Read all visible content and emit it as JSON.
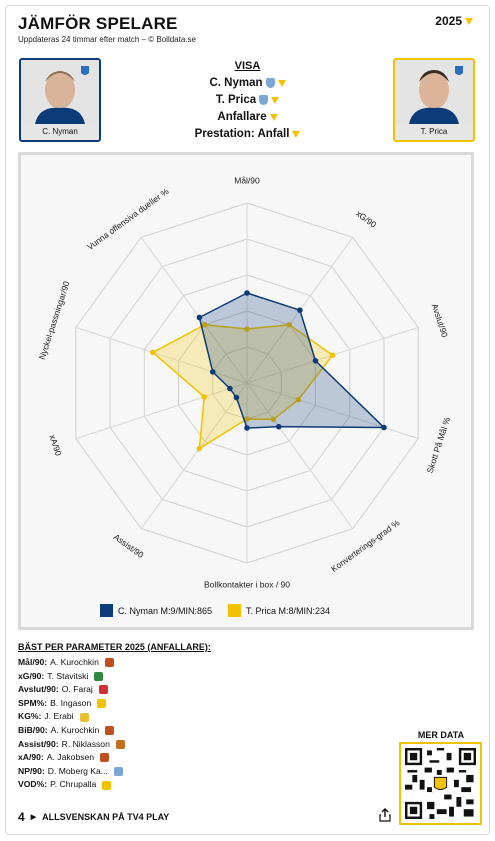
{
  "header": {
    "title": "JÄMFÖR SPELARE",
    "subtitle": "Uppdateras 24 timmar efter match – © Bolldata.se",
    "year": "2025"
  },
  "players": {
    "left": {
      "name": "C. Nyman",
      "color": "#0b3b78"
    },
    "right": {
      "name": "T. Prica",
      "color": "#f2c200"
    }
  },
  "visa": {
    "heading": "VISA",
    "player1": "C. Nyman",
    "player2": "T. Prica",
    "position": "Anfallare",
    "prestation": "Prestation: Anfall"
  },
  "chart_data": {
    "type": "radar",
    "axes": [
      "Mål/90",
      "xG/90",
      "Avslut/90",
      "Skott På Mål %",
      "Konverterings-grad %",
      "Bollkontakter i box / 90",
      "Assist/90",
      "xA/90",
      "Nyckel-passningar/90",
      "Vunna offensiva dueller %"
    ],
    "series": [
      {
        "name": "C. Nyman M:9/MIN:865",
        "values": [
          0.5,
          0.5,
          0.4,
          0.8,
          0.3,
          0.25,
          0.1,
          0.1,
          0.2,
          0.45
        ],
        "color": "#0b3b78"
      },
      {
        "name": "T. Prica M:8/MIN:234",
        "values": [
          0.3,
          0.4,
          0.5,
          0.3,
          0.25,
          0.2,
          0.45,
          0.25,
          0.55,
          0.4
        ],
        "color": "#f2c200"
      }
    ],
    "rlim": [
      0,
      1
    ],
    "grid": true
  },
  "legend": {
    "left": "C. Nyman M:9/MIN:865",
    "right": "T. Prica M:8/MIN:234"
  },
  "best": {
    "heading": "BÄST PER PARAMETER 2025 (ANFALLARE):",
    "rows": [
      {
        "k": "Mål/90",
        "v": "A. Kurochkin",
        "color": "#c05020"
      },
      {
        "k": "xG/90",
        "v": "T. Stavitski",
        "color": "#2e8b3e"
      },
      {
        "k": "Avslut/90",
        "v": "O. Faraj",
        "color": "#d23030"
      },
      {
        "k": "SPM%",
        "v": "B. Ingason",
        "color": "#f2c200"
      },
      {
        "k": "KG%",
        "v": "J. Erabi",
        "color": "#e8c030"
      },
      {
        "k": "BiB/90",
        "v": "A. Kurochkin",
        "color": "#c05020"
      },
      {
        "k": "Assist/90",
        "v": "R. Niklasson",
        "color": "#c07020"
      },
      {
        "k": "xA/90",
        "v": "A. Jakobsen",
        "color": "#c05020"
      },
      {
        "k": "NP/90",
        "v": "D. Moberg Ka...",
        "color": "#7aa7d6"
      },
      {
        "k": "VOD%",
        "v": "P. Chrupalla",
        "color": "#f2c200"
      }
    ]
  },
  "footer": {
    "mer_data": "MER DATA",
    "tv4": "ALLSVENSKAN PÅ TV4 PLAY",
    "tv4_logo": "4"
  }
}
